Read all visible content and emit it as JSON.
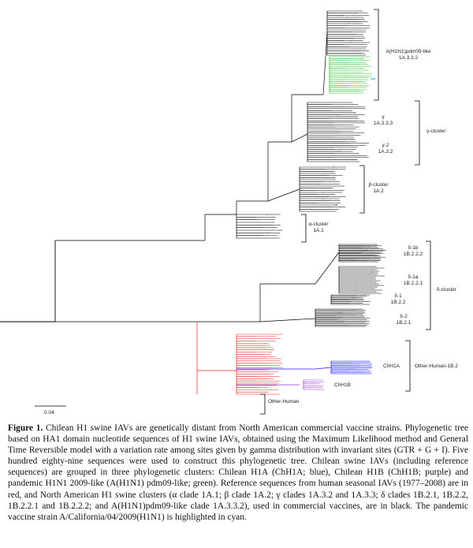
{
  "figure": {
    "scale_label": "0.04",
    "clade_labels": [
      {
        "id": "pdm09",
        "lines": [
          "A(H1N1)pdm09-like",
          "1A.3.3.2"
        ]
      },
      {
        "id": "gamma",
        "lines": [
          "γ",
          "1A.3.3.3"
        ]
      },
      {
        "id": "gamma2",
        "lines": [
          "γ-2",
          "1A.3.2"
        ]
      },
      {
        "id": "gamma-cluster",
        "lines": [
          "γ-cluster"
        ]
      },
      {
        "id": "beta",
        "lines": [
          "β-cluster",
          "1A.2"
        ]
      },
      {
        "id": "alpha",
        "lines": [
          "α-cluster",
          "1A.1"
        ]
      },
      {
        "id": "delta1b",
        "lines": [
          "δ-1b",
          "1B.2.2.2"
        ]
      },
      {
        "id": "delta1a",
        "lines": [
          "δ-1a",
          "1B.2.2.1"
        ]
      },
      {
        "id": "delta1",
        "lines": [
          "δ-1",
          "1B.2.2"
        ]
      },
      {
        "id": "delta2",
        "lines": [
          "δ-2",
          "1B.2.1"
        ]
      },
      {
        "id": "delta-cluster",
        "lines": [
          "δ-cluster"
        ]
      },
      {
        "id": "chh1a",
        "lines": [
          "ChH1A"
        ]
      },
      {
        "id": "chh1b",
        "lines": [
          "ChH1B"
        ]
      },
      {
        "id": "other-human-1b2",
        "lines": [
          "Other-Human-1B.2"
        ]
      },
      {
        "id": "other-human",
        "lines": [
          "Other-Human"
        ]
      }
    ],
    "colors": {
      "reference_na": "#000000",
      "chh1a": "#1a1aff",
      "chh1b": "#9933cc",
      "pdm09": "#22bb22",
      "human_seasonal": "#ee2222",
      "vaccine_strain": "#00cccc"
    }
  },
  "caption": {
    "label": "Figure 1.",
    "text": "Chilean H1 swine IAVs are genetically distant from North American commercial vaccine strains. Phylogenetic tree based on HA1 domain nucleotide sequences of H1 swine IAVs, obtained using the Maximum Likelihood method and General Time Reversible model with a variation rate among sites given by gamma distribution with invariant sites (GTR + G + I). Five hundred eighty-nine sequences were used to construct this phylogenetic tree. Chilean swine IAVs (including reference sequences) are grouped in three phylogenetic clusters: Chilean H1A (ChH1A; blue), Chilean H1B (ChH1B; purple) and pandemic H1N1 2009-like (A(H1N1) pdm09-like; green). Reference sequences from human seasonal IAVs (1977–2008) are in red, and North American H1 swine clusters (α clade 1A.1; β clade 1A.2; γ clades 1A.3.2 and 1A.3.3; δ clades 1B.2.1, 1B.2.2, 1B.2.2.1 and 1B.2.2.2; and A(H1N1)pdm09-like clade 1A.3.3.2), used in commercial vaccines, are in black. The pandemic vaccine strain A/California/04/2009(H1N1) is highlighted in cyan."
  }
}
